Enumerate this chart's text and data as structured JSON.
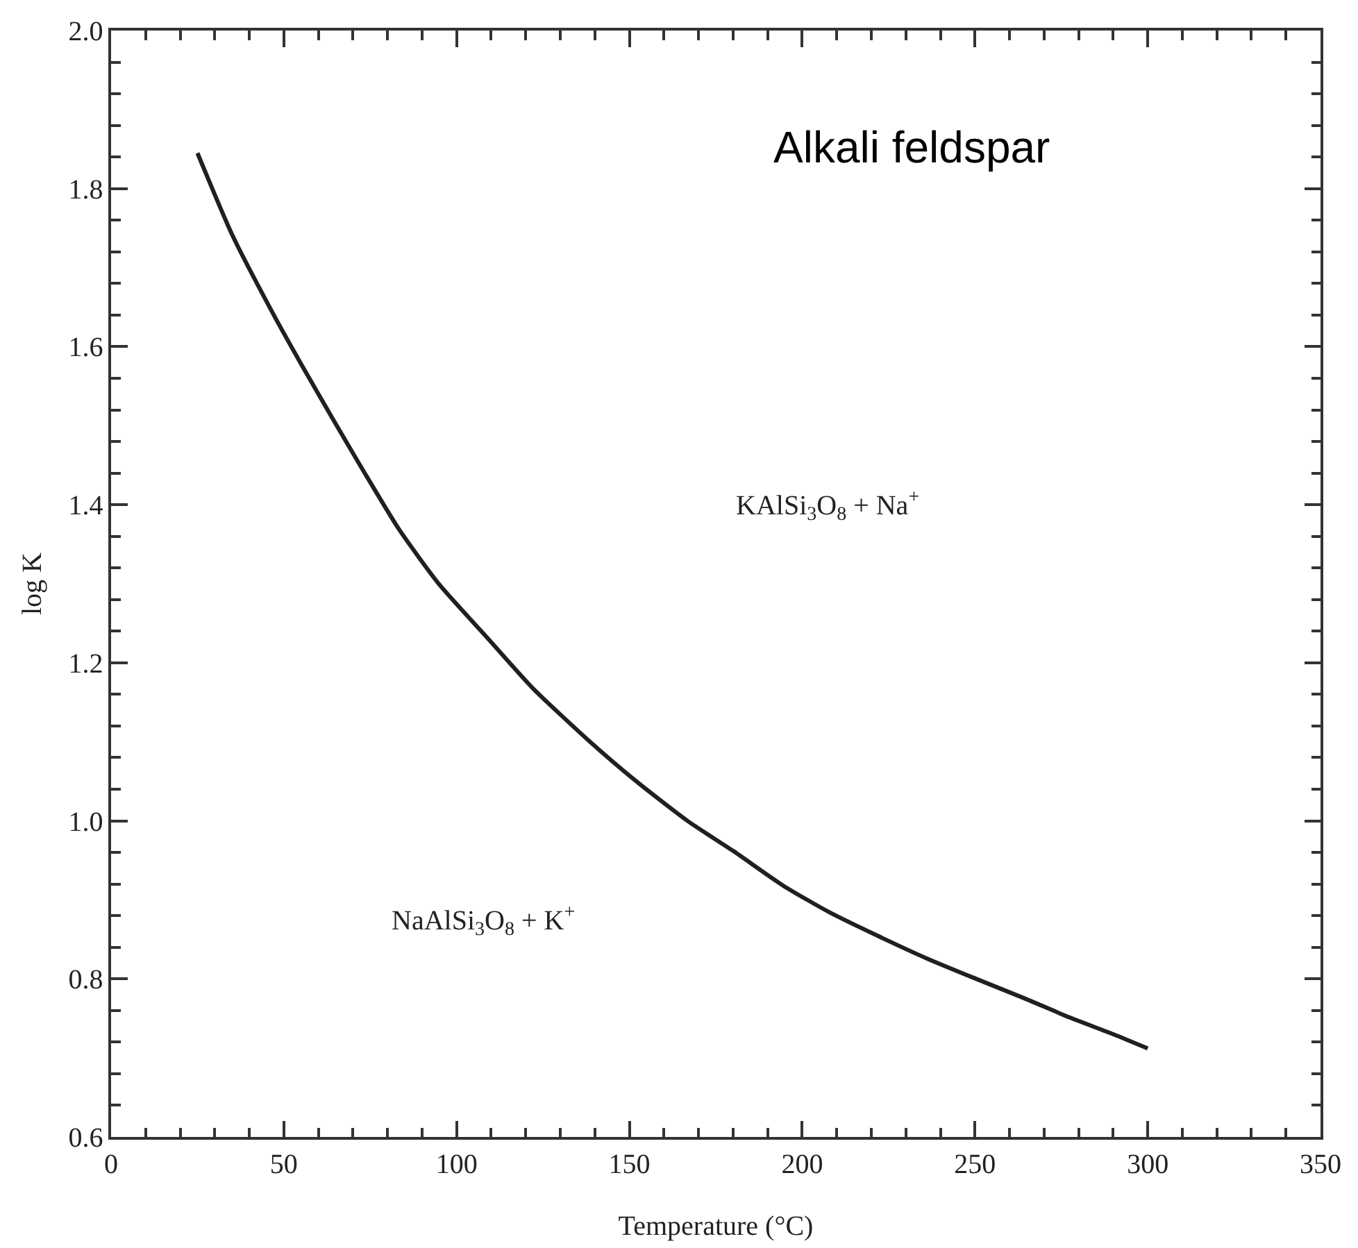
{
  "chart_data": {
    "type": "line",
    "xlabel": "Temperature (°C)",
    "ylabel": "log K",
    "x": [
      25,
      35,
      46.6,
      55,
      64.1,
      73,
      83.3,
      95,
      108.8,
      122,
      137.6,
      152,
      166.8,
      180,
      194.5,
      208,
      222.1,
      236,
      249.8,
      264,
      277.5,
      290,
      300
    ],
    "series": [
      {
        "color": "#231f20",
        "values": [
          1.845,
          1.742,
          1.644,
          1.578,
          1.509,
          1.443,
          1.369,
          1.299,
          1.232,
          1.168,
          1.104,
          1.05,
          1.0,
          0.962,
          0.918,
          0.884,
          0.854,
          0.826,
          0.801,
          0.776,
          0.751,
          0.73,
          0.712
        ]
      }
    ],
    "xlim": [
      0,
      350
    ],
    "xticks": [
      0,
      50,
      100,
      150,
      200,
      250,
      300,
      350
    ],
    "ylim": [
      0.6,
      2.0
    ],
    "yticks": [
      {
        "value": 0.6,
        "label": "0.6"
      },
      {
        "value": 0.8,
        "label": "0.8"
      },
      {
        "value": 1.0,
        "label": "1.0"
      },
      {
        "value": 1.2,
        "label": "1.2"
      },
      {
        "value": 1.4,
        "label": "1.4"
      },
      {
        "value": 1.6,
        "label": "1.6"
      },
      {
        "value": 1.8,
        "label": "1.8"
      },
      {
        "value": 2.0,
        "label": "2.0"
      }
    ],
    "grid": false,
    "marker": "none",
    "line_style": "solid",
    "annotations": [
      "Alkali feldspar",
      "KAlSi$_{3}$O$_{8}$ + Na$^{+}$",
      "NaAlSi$_{3}$O$_{8}$ + K$^{+}$"
    ]
  }
}
